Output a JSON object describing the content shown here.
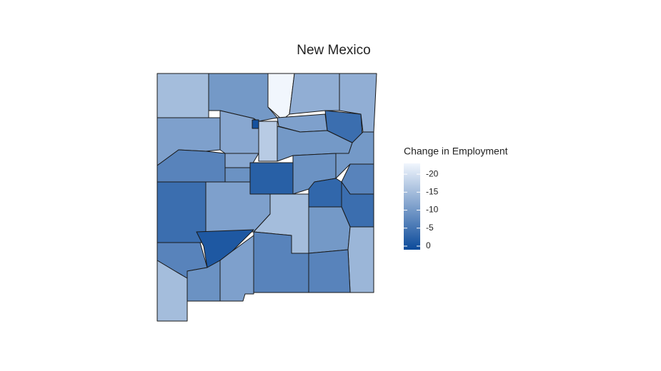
{
  "chart_data": {
    "type": "choropleth",
    "title": "New Mexico",
    "legend_title": "Change in Employment",
    "values": [
      -15,
      -10,
      -23,
      -13,
      -13,
      -11,
      -12,
      0,
      -17,
      -11,
      -10,
      -4,
      -10,
      -7,
      -12,
      -9,
      -2,
      -9,
      -7,
      -3,
      -4,
      -4,
      -11,
      -15,
      -10,
      -14,
      -1,
      -7,
      -15,
      -9,
      -11,
      -7,
      -7
    ],
    "colorlim": [
      -23,
      1
    ],
    "colorscale": [
      "#f1f6fd",
      "#0b4a9a"
    ],
    "ticks": [
      -20,
      -15,
      -10,
      -5,
      0
    ]
  }
}
